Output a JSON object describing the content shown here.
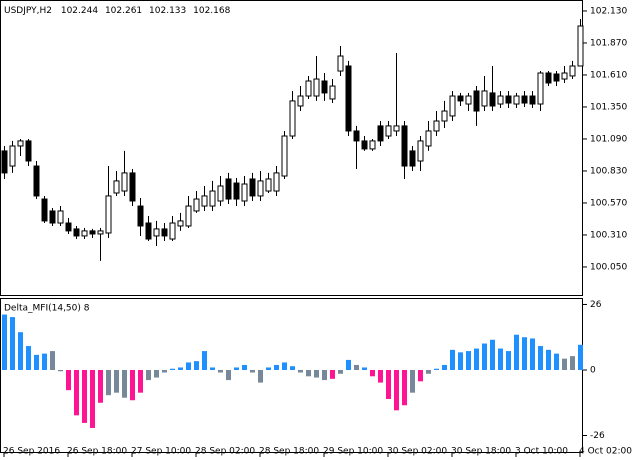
{
  "chart_data": [
    {
      "type": "candlestick",
      "title": "USDJPY,H2",
      "header_values": [
        102.244,
        102.261,
        102.133,
        102.168
      ],
      "categories": [
        "26 Sep 2016",
        null,
        null,
        null,
        null,
        null,
        null,
        null,
        "26 Sep 18:00",
        null,
        null,
        null,
        null,
        null,
        null,
        null,
        "27 Sep 10:00",
        null,
        null,
        null,
        null,
        null,
        null,
        null,
        "28 Sep 02:00",
        null,
        null,
        null,
        null,
        null,
        null,
        null,
        "28 Sep 18:00",
        null,
        null,
        null,
        null,
        null,
        null,
        null,
        "29 Sep 10:00",
        null,
        null,
        null,
        null,
        null,
        null,
        null,
        "30 Sep 02:00",
        null,
        null,
        null,
        null,
        null,
        null,
        null,
        "30 Sep 18:00",
        null,
        null,
        null,
        null,
        null,
        null,
        null,
        "3 Oct 10:00",
        null,
        null,
        null,
        null,
        null,
        null,
        null,
        "4 Oct 02:00"
      ],
      "open": [
        100.993,
        100.87,
        101.033,
        101.074,
        100.87,
        100.602,
        100.505,
        100.407,
        100.407,
        100.359,
        100.302,
        100.343,
        100.318,
        100.326,
        100.651,
        100.667,
        100.814,
        100.545,
        100.407,
        100.302,
        100.359,
        100.277,
        100.383,
        100.383,
        100.505,
        100.545,
        100.545,
        100.586,
        100.765,
        100.732,
        100.586,
        100.765,
        100.627,
        100.667,
        100.667,
        100.789,
        101.114,
        101.358,
        101.439,
        101.439,
        101.561,
        101.415,
        101.642,
        101.683,
        101.155,
        101.074,
        101.009,
        101.196,
        101.114,
        101.155,
        101.196,
        100.993,
        100.911,
        101.033,
        101.155,
        101.236,
        101.277,
        101.439,
        101.374,
        101.48,
        101.358,
        101.464,
        101.374,
        101.439,
        101.374,
        101.439,
        101.439,
        101.374,
        101.626,
        101.618,
        101.577,
        101.602,
        101.683
      ],
      "high": [
        101.033,
        101.074,
        101.09,
        101.09,
        100.911,
        100.627,
        100.529,
        100.545,
        100.448,
        100.383,
        100.367,
        100.359,
        100.367,
        100.87,
        100.83,
        100.993,
        100.846,
        100.61,
        100.464,
        100.424,
        100.407,
        100.464,
        100.489,
        100.627,
        100.667,
        100.708,
        100.749,
        100.789,
        100.814,
        100.773,
        100.789,
        100.814,
        100.83,
        100.814,
        100.87,
        101.155,
        101.48,
        101.52,
        101.602,
        101.764,
        101.626,
        101.577,
        101.845,
        101.724,
        101.196,
        101.114,
        101.09,
        101.236,
        101.236,
        101.788,
        101.236,
        101.033,
        101.114,
        101.236,
        101.317,
        101.399,
        101.48,
        101.464,
        101.464,
        101.52,
        101.602,
        101.683,
        101.48,
        101.48,
        101.464,
        101.48,
        101.48,
        101.642,
        101.642,
        101.642,
        101.683,
        101.724,
        102.065
      ],
      "low": [
        100.765,
        100.814,
        100.952,
        100.87,
        100.602,
        100.407,
        100.383,
        100.383,
        100.318,
        100.277,
        100.277,
        100.285,
        100.099,
        100.285,
        100.627,
        100.627,
        100.545,
        100.302,
        100.261,
        100.22,
        100.261,
        100.261,
        100.343,
        100.367,
        100.489,
        100.505,
        100.505,
        100.545,
        100.562,
        100.545,
        100.545,
        100.586,
        100.586,
        100.651,
        100.627,
        100.765,
        101.09,
        101.317,
        101.415,
        101.399,
        101.399,
        101.382,
        101.602,
        101.114,
        100.846,
        100.993,
        100.993,
        101.033,
        101.09,
        101.114,
        100.765,
        100.83,
        100.83,
        100.993,
        101.114,
        101.179,
        101.236,
        101.358,
        101.317,
        101.196,
        101.317,
        101.317,
        101.342,
        101.342,
        101.342,
        101.35,
        101.342,
        101.317,
        101.52,
        101.52,
        101.545,
        101.577,
        101.683
      ],
      "close": [
        100.814,
        101.033,
        101.074,
        100.911,
        100.627,
        100.424,
        100.407,
        100.505,
        100.343,
        100.302,
        100.343,
        100.318,
        100.343,
        100.627,
        100.749,
        100.814,
        100.586,
        100.383,
        100.277,
        100.359,
        100.302,
        100.407,
        100.424,
        100.545,
        100.602,
        100.627,
        100.667,
        100.708,
        100.602,
        100.602,
        100.724,
        100.627,
        100.749,
        100.765,
        100.814,
        101.114,
        101.399,
        101.439,
        101.561,
        101.577,
        101.464,
        101.52,
        101.764,
        101.155,
        101.074,
        101.009,
        101.074,
        101.074,
        101.196,
        101.196,
        100.87,
        100.87,
        101.074,
        101.155,
        101.236,
        101.317,
        101.439,
        101.399,
        101.439,
        101.317,
        101.48,
        101.358,
        101.439,
        101.382,
        101.439,
        101.382,
        101.374,
        101.626,
        101.545,
        101.561,
        101.626,
        101.683,
        102.008
      ],
      "up_color": "#ffffff",
      "down_color": "#000000",
      "ylim": [
        99.814,
        102.211
      ],
      "yticks": [
        {
          "value": 102.13,
          "label": "102.130"
        },
        {
          "value": 101.87,
          "label": "101.870"
        },
        {
          "value": 101.61,
          "label": "101.610"
        },
        {
          "value": 101.35,
          "label": "101.350"
        },
        {
          "value": 101.09,
          "label": "101.090"
        },
        {
          "value": 100.83,
          "label": "100.830"
        },
        {
          "value": 100.57,
          "label": "100.570"
        },
        {
          "value": 100.31,
          "label": "100.310"
        },
        {
          "value": 100.05,
          "label": "100.050"
        }
      ]
    },
    {
      "type": "bar",
      "title": "Delta_MFI(14,50) 8",
      "values": [
        22,
        21,
        15,
        9.5,
        6,
        6.5,
        7.5,
        -0.5,
        -8,
        -18,
        -21,
        -23,
        -13,
        -10,
        -9,
        -11,
        -12,
        -9,
        -4,
        -3,
        -1,
        0.5,
        1,
        3,
        3.5,
        7.5,
        1,
        -1,
        -4,
        1,
        2,
        -1,
        -5,
        1,
        2,
        3,
        1.5,
        -1,
        -2.5,
        -3,
        -4,
        -3.5,
        -1.5,
        4,
        2,
        1,
        -2.5,
        -5,
        -11.5,
        -16,
        -14,
        -9,
        -4.5,
        -1.5,
        0.5,
        2,
        8,
        7,
        7.5,
        8.5,
        10.5,
        12,
        8.5,
        7.5,
        14,
        13,
        12.5,
        9.5,
        8,
        6.5,
        4.5,
        5.5,
        10
      ],
      "colors": [
        "#1e90ff",
        "#1e90ff",
        "#1e90ff",
        "#1e90ff",
        "#1e90ff",
        "#1e90ff",
        "#778899",
        "#778899",
        "#ff1493",
        "#ff1493",
        "#ff1493",
        "#ff1493",
        "#ff1493",
        "#778899",
        "#778899",
        "#778899",
        "#ff1493",
        "#ff1493",
        "#778899",
        "#778899",
        "#778899",
        "#1e90ff",
        "#1e90ff",
        "#1e90ff",
        "#1e90ff",
        "#1e90ff",
        "#1e90ff",
        "#778899",
        "#778899",
        "#1e90ff",
        "#1e90ff",
        "#778899",
        "#778899",
        "#1e90ff",
        "#1e90ff",
        "#1e90ff",
        "#1e90ff",
        "#778899",
        "#778899",
        "#778899",
        "#778899",
        "#ff1493",
        "#778899",
        "#1e90ff",
        "#778899",
        "#1e90ff",
        "#ff1493",
        "#ff1493",
        "#ff1493",
        "#ff1493",
        "#ff1493",
        "#778899",
        "#ff1493",
        "#778899",
        "#1e90ff",
        "#1e90ff",
        "#1e90ff",
        "#1e90ff",
        "#1e90ff",
        "#1e90ff",
        "#1e90ff",
        "#1e90ff",
        "#1e90ff",
        "#1e90ff",
        "#1e90ff",
        "#1e90ff",
        "#1e90ff",
        "#1e90ff",
        "#1e90ff",
        "#1e90ff",
        "#778899",
        "#778899",
        "#1e90ff"
      ],
      "ylim": [
        -32.94,
        28.17
      ],
      "yticks": [
        26,
        0,
        -26
      ]
    }
  ]
}
